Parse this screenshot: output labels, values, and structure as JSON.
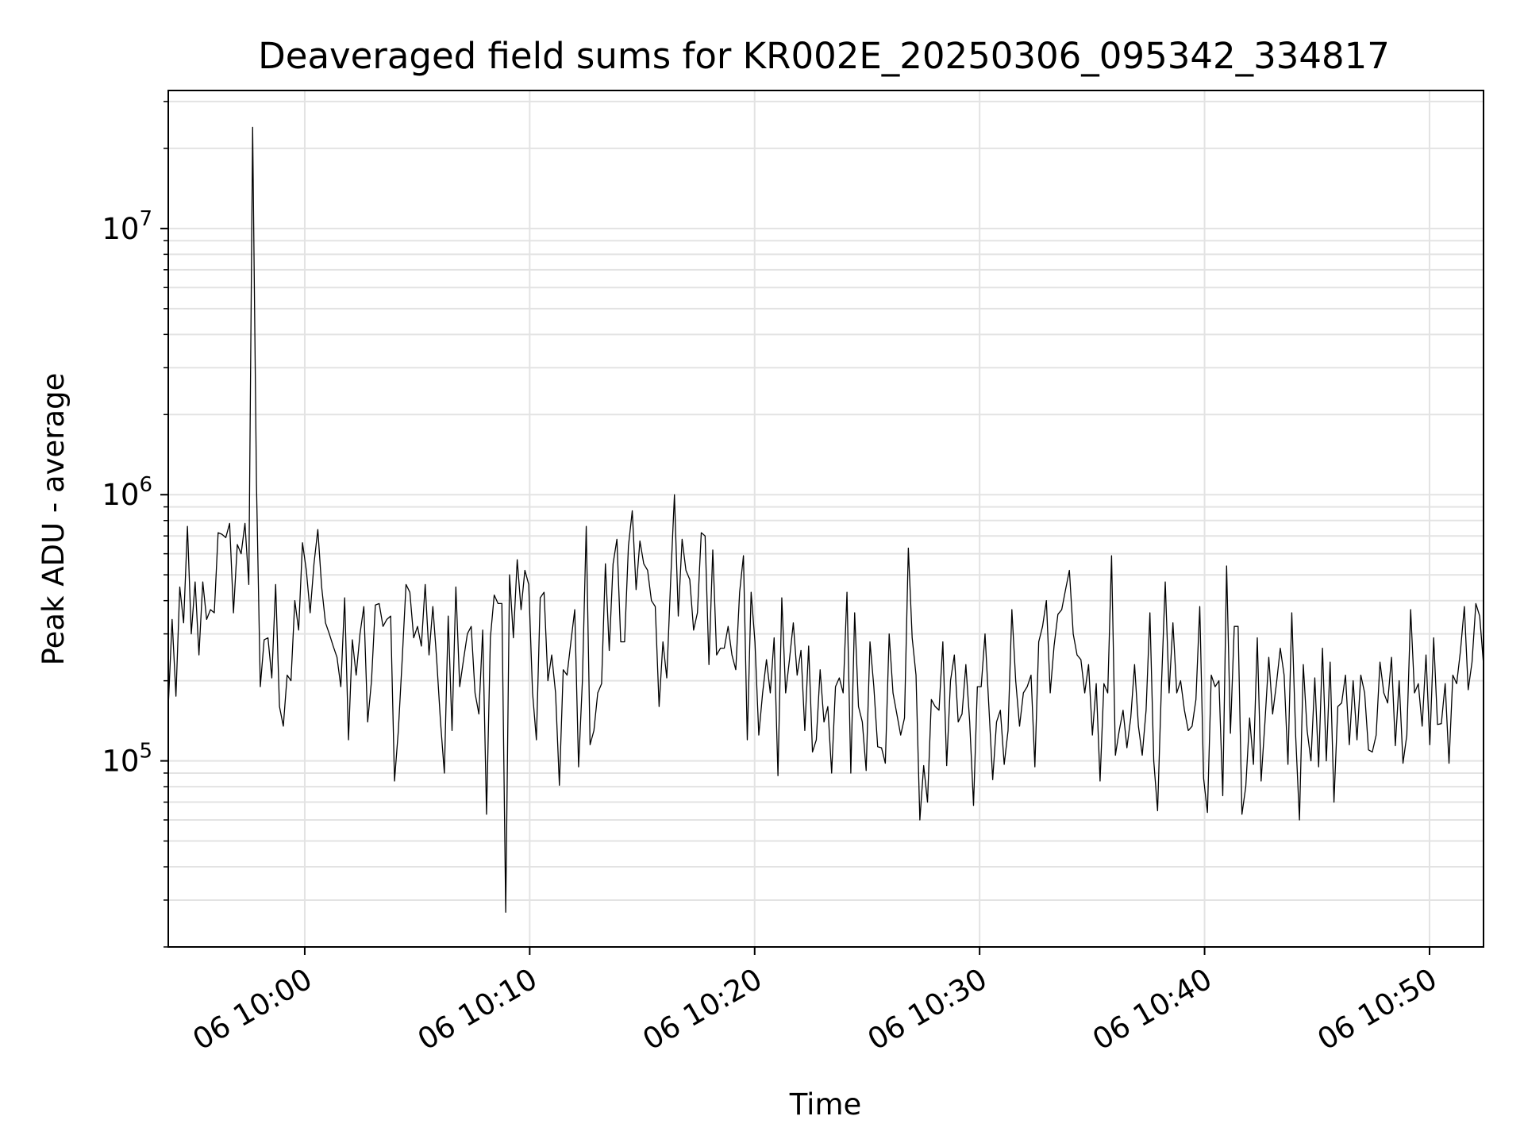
{
  "chart_data": {
    "type": "line",
    "title": "Deaveraged field sums for KR002E_20250306_095342_334817",
    "xlabel": "Time",
    "ylabel": "Peak ADU - average",
    "yscale": "log",
    "ylim": [
      20000,
      33000000
    ],
    "xlim": [
      "2025-03-06 09:53:56",
      "2025-03-06 10:52:24"
    ],
    "x_tick_labels": [
      "06 10:00",
      "06 10:10",
      "06 10:20",
      "06 10:30",
      "06 10:40",
      "06 10:50"
    ],
    "y_tick_labels": [
      {
        "base": "10",
        "exp": "5"
      },
      {
        "base": "10",
        "exp": "6"
      },
      {
        "base": "10",
        "exp": "7"
      }
    ],
    "grid": true,
    "line_color": "#000000",
    "series": [
      {
        "x_start": "2025-03-06 09:53:56",
        "x_end": "2025-03-06 10:52:24",
        "values": [
          160000,
          340000,
          175000,
          450000,
          330000,
          760000,
          300000,
          470000,
          250000,
          470000,
          340000,
          370000,
          360000,
          720000,
          710000,
          690000,
          780000,
          360000,
          650000,
          600000,
          780000,
          460000,
          24000000,
          1100000,
          190000,
          285000,
          290000,
          205000,
          460000,
          160000,
          135000,
          210000,
          200000,
          400000,
          310000,
          660000,
          520000,
          360000,
          550000,
          740000,
          450000,
          330000,
          300000,
          270000,
          245000,
          190000,
          410000,
          120000,
          285000,
          210000,
          300000,
          380000,
          140000,
          200000,
          385000,
          390000,
          320000,
          340000,
          350000,
          84000,
          130000,
          240000,
          460000,
          430000,
          290000,
          320000,
          270000,
          460000,
          250000,
          380000,
          240000,
          140000,
          90000,
          350000,
          130000,
          450000,
          190000,
          240000,
          300000,
          320000,
          180000,
          150000,
          310000,
          63000,
          290000,
          420000,
          390000,
          390000,
          27000,
          500000,
          290000,
          570000,
          370000,
          520000,
          460000,
          180000,
          120000,
          410000,
          430000,
          200000,
          250000,
          180000,
          81000,
          220000,
          210000,
          280000,
          370000,
          95000,
          200000,
          760000,
          115000,
          130000,
          180000,
          195000,
          550000,
          260000,
          550000,
          680000,
          280000,
          280000,
          640000,
          870000,
          440000,
          670000,
          550000,
          520000,
          400000,
          380000,
          160000,
          280000,
          205000,
          470000,
          1000000,
          350000,
          680000,
          520000,
          480000,
          310000,
          360000,
          720000,
          700000,
          230000,
          620000,
          250000,
          265000,
          265000,
          320000,
          250000,
          220000,
          430000,
          590000,
          120000,
          430000,
          280000,
          125000,
          180000,
          240000,
          180000,
          290000,
          88000,
          410000,
          180000,
          240000,
          330000,
          210000,
          260000,
          130000,
          270000,
          108000,
          120000,
          220000,
          140000,
          160000,
          90000,
          190000,
          205000,
          180000,
          430000,
          90000,
          360000,
          160000,
          140000,
          92000,
          280000,
          190000,
          113000,
          112000,
          98000,
          300000,
          180000,
          150000,
          125000,
          145000,
          630000,
          290000,
          210000,
          60000,
          96000,
          70000,
          170000,
          160000,
          155000,
          280000,
          96000,
          200000,
          250000,
          140000,
          150000,
          230000,
          140000,
          68000,
          190000,
          190000,
          300000,
          160000,
          85000,
          140000,
          155000,
          97000,
          130000,
          370000,
          200000,
          135000,
          180000,
          190000,
          210000,
          95000,
          280000,
          320000,
          400000,
          180000,
          270000,
          355000,
          370000,
          440000,
          520000,
          300000,
          250000,
          240000,
          180000,
          230000,
          125000,
          195000,
          84000,
          195000,
          180000,
          590000,
          105000,
          130000,
          155000,
          112000,
          145000,
          230000,
          135000,
          105000,
          155000,
          360000,
          100000,
          65000,
          190000,
          470000,
          180000,
          330000,
          180000,
          200000,
          155000,
          130000,
          135000,
          170000,
          380000,
          86000,
          64000,
          210000,
          190000,
          200000,
          74000,
          540000,
          127000,
          320000,
          320000,
          63000,
          80000,
          145000,
          97000,
          290000,
          84000,
          140000,
          245000,
          150000,
          195000,
          265000,
          210000,
          97000,
          360000,
          125000,
          60000,
          230000,
          130000,
          100000,
          205000,
          95000,
          265000,
          100000,
          235000,
          70000,
          160000,
          165000,
          210000,
          115000,
          200000,
          120000,
          210000,
          180000,
          110000,
          108000,
          125000,
          235000,
          180000,
          165000,
          245000,
          114000,
          200000,
          98000,
          125000,
          370000,
          180000,
          195000,
          135000,
          250000,
          115000,
          290000,
          137000,
          138000,
          195000,
          98000,
          210000,
          195000,
          260000,
          380000,
          185000,
          235000,
          390000,
          350000,
          230000
        ]
      }
    ]
  }
}
